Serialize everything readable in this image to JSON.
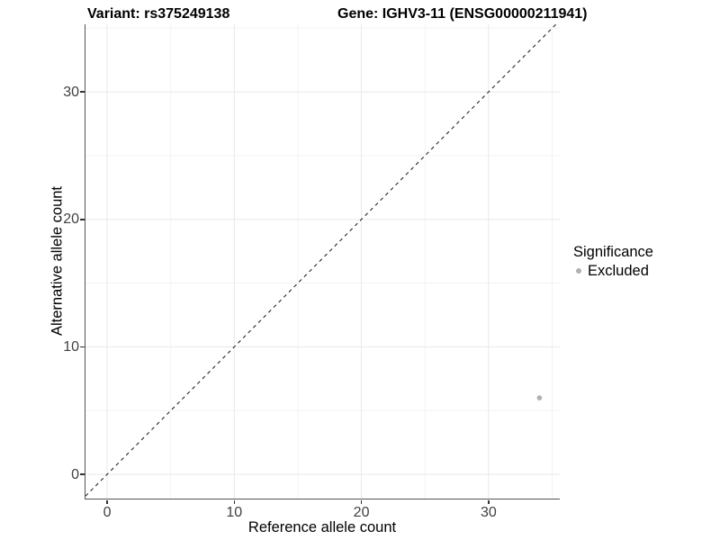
{
  "chart_data": {
    "type": "scatter",
    "titles": {
      "left": "Variant: rs375249138",
      "right": "Gene: IGHV3-11 (ENSG00000211941)"
    },
    "xlabel": "Reference allele count",
    "ylabel": "Alternative allele count",
    "xlim": [
      -1.7,
      35.6
    ],
    "ylim": [
      -1.9,
      35.3
    ],
    "x_ticks": [
      0,
      10,
      20,
      30
    ],
    "y_ticks": [
      0,
      10,
      20,
      30
    ],
    "x_minor_gridlines": [
      5,
      15,
      25,
      35
    ],
    "y_minor_gridlines": [
      5,
      15,
      25,
      35
    ],
    "grid": {
      "major_color": "#e8e8e8",
      "minor_color": "#f3f3f3"
    },
    "identity_line": {
      "style": "dashed",
      "color": "#111111",
      "from": -1.7,
      "to": 35.3
    },
    "series": [
      {
        "name": "Excluded",
        "color": "#b0b0b0",
        "point_radius": 2.8,
        "points": [
          [
            34,
            6
          ]
        ]
      }
    ],
    "legend": {
      "title": "Significance",
      "position": "right",
      "items": [
        {
          "label": "Excluded",
          "color": "#b0b0b0"
        }
      ]
    }
  }
}
